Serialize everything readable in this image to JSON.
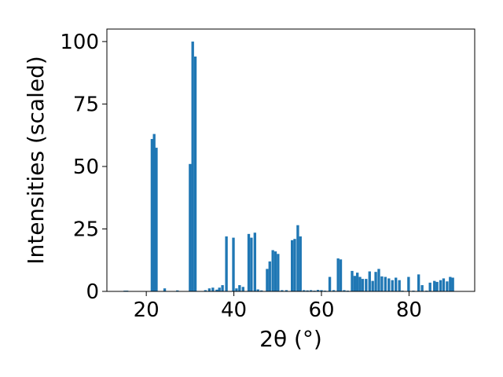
{
  "chart_data": {
    "type": "bar",
    "title": "",
    "xlabel": "2θ (°)",
    "ylabel": "Intensities (scaled)",
    "xlim": [
      11,
      95
    ],
    "ylim": [
      0,
      105
    ],
    "xticks": [
      20,
      40,
      60,
      80
    ],
    "yticks": [
      0,
      25,
      50,
      75,
      100
    ],
    "bar_width": 0.6,
    "bar_color": "#1f77b4",
    "grid": false,
    "x": [
      15.1,
      15.6,
      21.3,
      21.8,
      22.3,
      24.2,
      27.1,
      30.0,
      30.6,
      31.2,
      33.5,
      34.4,
      35.2,
      36.1,
      36.7,
      37.4,
      38.3,
      39.9,
      40.6,
      41.3,
      42.1,
      43.4,
      44.0,
      44.8,
      45.5,
      46.3,
      47.6,
      48.2,
      48.9,
      49.5,
      50.1,
      51.0,
      52.0,
      53.3,
      53.9,
      54.6,
      55.2,
      56.0,
      56.8,
      57.6,
      58.4,
      59.2,
      60.0,
      60.8,
      61.9,
      62.8,
      63.8,
      64.4,
      65.2,
      66.0,
      67.0,
      67.6,
      68.2,
      68.8,
      69.4,
      70.2,
      71.0,
      71.7,
      72.4,
      73.1,
      73.8,
      74.6,
      75.4,
      76.2,
      77.0,
      77.8,
      78.5,
      79.9,
      81.0,
      82.2,
      83.0,
      84.0,
      84.8,
      85.8,
      86.4,
      87.2,
      87.9,
      88.7,
      89.4,
      90.0
    ],
    "values": [
      0.3,
      0.3,
      61,
      63,
      57.5,
      1.2,
      0.4,
      51,
      100,
      94,
      0.5,
      1.2,
      1.5,
      0.7,
      1.5,
      2.5,
      22,
      21.5,
      1.2,
      2.5,
      1.8,
      23,
      21.5,
      23.5,
      0.8,
      0.4,
      9,
      12,
      16.5,
      16,
      15,
      0.5,
      0.5,
      20.5,
      21,
      26.5,
      22,
      0.5,
      0.4,
      0.5,
      0.3,
      0.6,
      0.5,
      0.3,
      5.8,
      0.5,
      13.2,
      12.8,
      0.5,
      0.3,
      8.2,
      6.2,
      7.5,
      5.8,
      5.0,
      5.0,
      8.0,
      4.2,
      7.8,
      9.0,
      6.0,
      5.8,
      5.2,
      4.5,
      5.5,
      4.5,
      0.3,
      5.8,
      0.3,
      6.8,
      2.5,
      0.3,
      3.5,
      4.2,
      3.8,
      4.5,
      5.2,
      4.0,
      5.8,
      5.5
    ]
  }
}
